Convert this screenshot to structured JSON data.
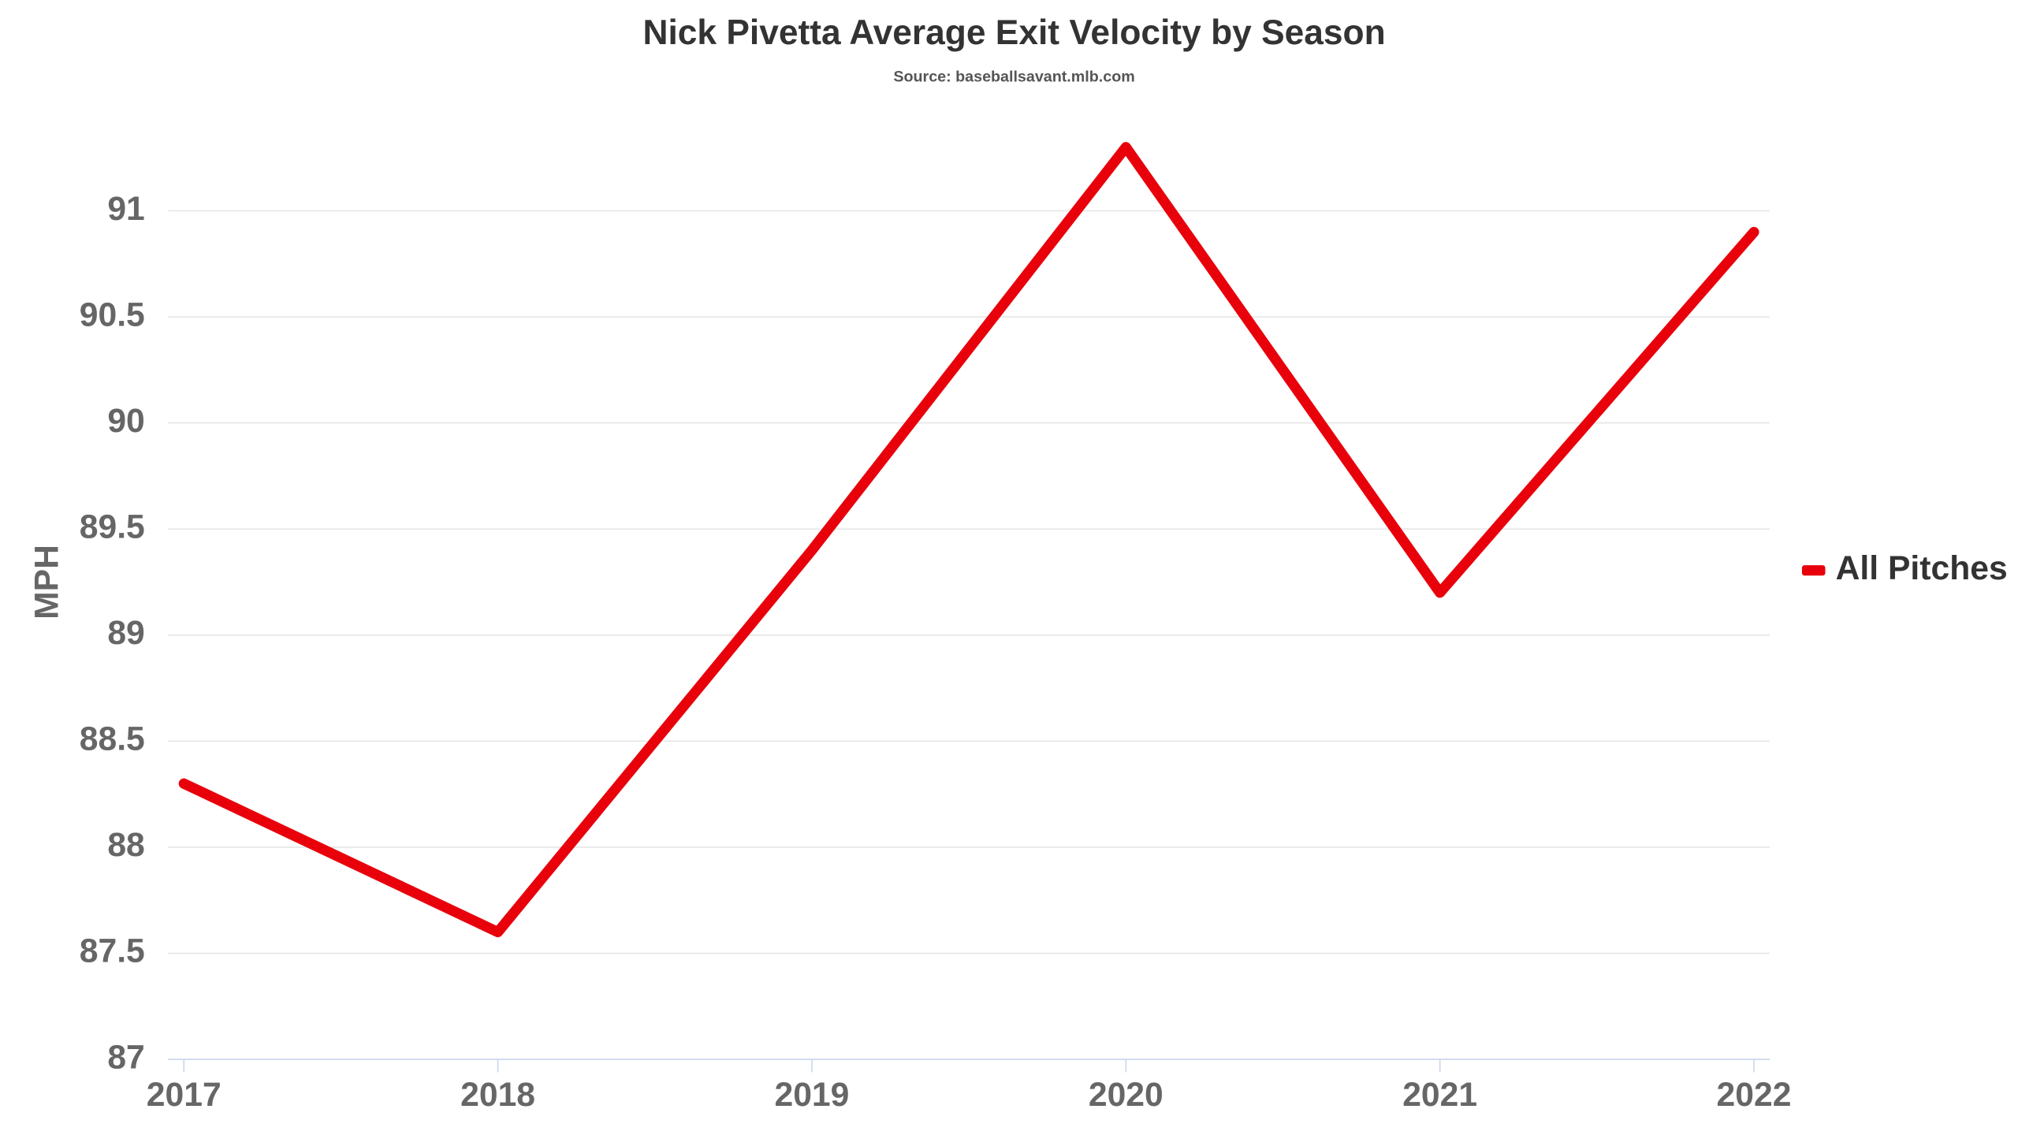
{
  "chart_data": {
    "type": "line",
    "title": "Nick Pivetta Average Exit Velocity by Season",
    "subtitle": "Source: baseballsavant.mlb.com",
    "y_label": "MPH",
    "x": [
      2017,
      2018,
      2019,
      2020,
      2021,
      2022
    ],
    "xlim": [
      2016.95,
      2022.05
    ],
    "xticks": [
      2017,
      2018,
      2019,
      2020,
      2021,
      2022
    ],
    "series": [
      {
        "name": "All Pitches",
        "color": "#e8000b",
        "values": [
          88.3,
          87.6,
          89.4,
          91.3,
          89.2,
          90.9
        ]
      }
    ],
    "ylim": [
      87,
      91.4
    ],
    "yticks": [
      87,
      87.5,
      88,
      88.5,
      89,
      89.5,
      90,
      90.5,
      91
    ],
    "grid": true,
    "legend": "right"
  }
}
